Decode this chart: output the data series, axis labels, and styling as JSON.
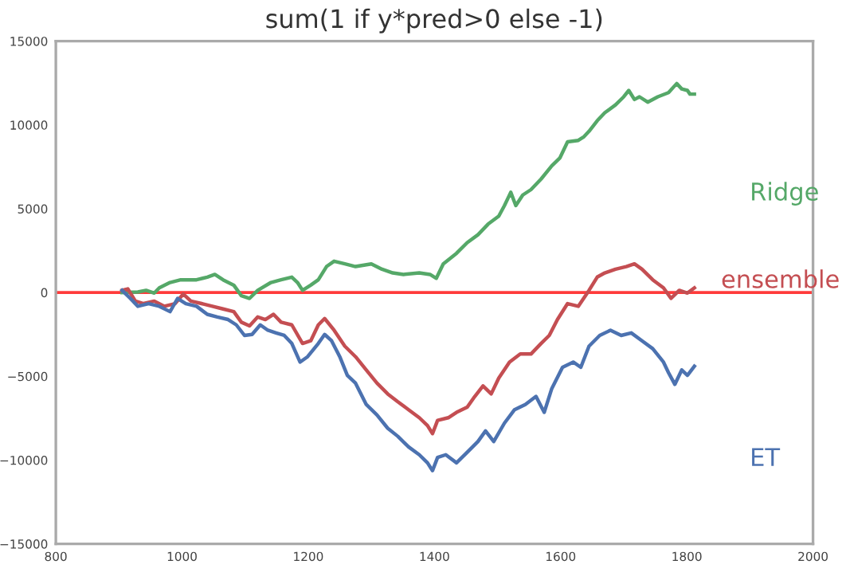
{
  "chart_data": {
    "type": "line",
    "title": "sum(1 if y*pred>0 else -1)",
    "xlim": [
      800,
      2000
    ],
    "xticks": [
      800,
      1000,
      1200,
      1400,
      1600,
      1800,
      2000
    ],
    "ylim": [
      -15000,
      15000
    ],
    "yticks": [
      -15000,
      -10000,
      -5000,
      0,
      5000,
      10000,
      15000
    ],
    "grid": false,
    "legend": false,
    "marker": "none",
    "line_style": "solid",
    "ref_lines": [
      {
        "axis": "y",
        "value": 0,
        "color": "#ff3b3b"
      }
    ],
    "series": [
      {
        "name": "Ridge",
        "color": "#55a868",
        "x": [
          905,
          930,
          943,
          956,
          964,
          981,
          998,
          1023,
          1040,
          1052,
          1065,
          1082,
          1094,
          1107,
          1120,
          1141,
          1157,
          1174,
          1183,
          1191,
          1204,
          1216,
          1229,
          1241,
          1258,
          1275,
          1300,
          1317,
          1334,
          1351,
          1376,
          1393,
          1403,
          1414,
          1435,
          1452,
          1469,
          1485,
          1502,
          1511,
          1521,
          1529,
          1540,
          1553,
          1569,
          1586,
          1599,
          1611,
          1628,
          1637,
          1645,
          1658,
          1670,
          1687,
          1700,
          1708,
          1717,
          1725,
          1738,
          1754,
          1771,
          1784,
          1792,
          1801,
          1805,
          1812
        ],
        "values": [
          0,
          30,
          130,
          -30,
          280,
          600,
          760,
          760,
          920,
          1080,
          760,
          440,
          -190,
          -350,
          130,
          600,
          760,
          920,
          600,
          130,
          440,
          760,
          1550,
          1870,
          1710,
          1550,
          1710,
          1390,
          1170,
          1080,
          1170,
          1080,
          850,
          1710,
          2340,
          2980,
          3450,
          4080,
          4560,
          5190,
          5980,
          5190,
          5820,
          6140,
          6770,
          7560,
          8040,
          8990,
          9080,
          9300,
          9620,
          10250,
          10730,
          11200,
          11680,
          12060,
          11520,
          11680,
          11360,
          11680,
          11930,
          12470,
          12150,
          12060,
          11840,
          11840
        ]
      },
      {
        "name": "ensemble",
        "color": "#c44e52",
        "x": [
          905,
          914,
          926,
          939,
          956,
          972,
          989,
          1002,
          1014,
          1031,
          1048,
          1065,
          1082,
          1094,
          1107,
          1120,
          1132,
          1145,
          1157,
          1174,
          1191,
          1204,
          1216,
          1226,
          1241,
          1258,
          1275,
          1292,
          1309,
          1326,
          1342,
          1359,
          1376,
          1389,
          1397,
          1405,
          1422,
          1435,
          1452,
          1464,
          1477,
          1490,
          1502,
          1519,
          1536,
          1553,
          1569,
          1582,
          1595,
          1611,
          1628,
          1645,
          1658,
          1670,
          1687,
          1704,
          1717,
          1729,
          1746,
          1763,
          1775,
          1788,
          1801,
          1812
        ],
        "values": [
          130,
          220,
          -510,
          -660,
          -510,
          -820,
          -660,
          -90,
          -510,
          -660,
          -820,
          -980,
          -1140,
          -1770,
          -1990,
          -1460,
          -1610,
          -1300,
          -1770,
          -1930,
          -3040,
          -2880,
          -1930,
          -1550,
          -2250,
          -3200,
          -3830,
          -4620,
          -5410,
          -6050,
          -6520,
          -6990,
          -7470,
          -7940,
          -8420,
          -7630,
          -7470,
          -7150,
          -6840,
          -6200,
          -5570,
          -6050,
          -5100,
          -4150,
          -3670,
          -3670,
          -3040,
          -2560,
          -1610,
          -660,
          -820,
          130,
          920,
          1170,
          1390,
          1550,
          1710,
          1390,
          760,
          280,
          -350,
          130,
          -30,
          280
        ]
      },
      {
        "name": "ET",
        "color": "#4c72b0",
        "x": [
          905,
          918,
          930,
          947,
          964,
          981,
          993,
          1006,
          1023,
          1040,
          1056,
          1073,
          1086,
          1099,
          1111,
          1124,
          1136,
          1149,
          1162,
          1174,
          1187,
          1199,
          1216,
          1226,
          1237,
          1250,
          1262,
          1275,
          1292,
          1309,
          1326,
          1342,
          1359,
          1376,
          1389,
          1397,
          1405,
          1418,
          1435,
          1452,
          1469,
          1481,
          1494,
          1511,
          1527,
          1544,
          1561,
          1574,
          1586,
          1603,
          1620,
          1632,
          1645,
          1662,
          1679,
          1696,
          1712,
          1729,
          1746,
          1763,
          1771,
          1781,
          1792,
          1801,
          1812
        ],
        "values": [
          130,
          -350,
          -820,
          -660,
          -820,
          -1140,
          -350,
          -660,
          -820,
          -1300,
          -1460,
          -1610,
          -1930,
          -2560,
          -2500,
          -1930,
          -2250,
          -2410,
          -2560,
          -3040,
          -4150,
          -3830,
          -3040,
          -2500,
          -2880,
          -3830,
          -4940,
          -5410,
          -6680,
          -7310,
          -8100,
          -8580,
          -9210,
          -9680,
          -10160,
          -10630,
          -9840,
          -9680,
          -10160,
          -9530,
          -8890,
          -8260,
          -8890,
          -7790,
          -6990,
          -6680,
          -6200,
          -7150,
          -5730,
          -4460,
          -4150,
          -4460,
          -3200,
          -2560,
          -2250,
          -2560,
          -2410,
          -2880,
          -3350,
          -4150,
          -4780,
          -5480,
          -4620,
          -4940,
          -4400
        ]
      }
    ]
  }
}
